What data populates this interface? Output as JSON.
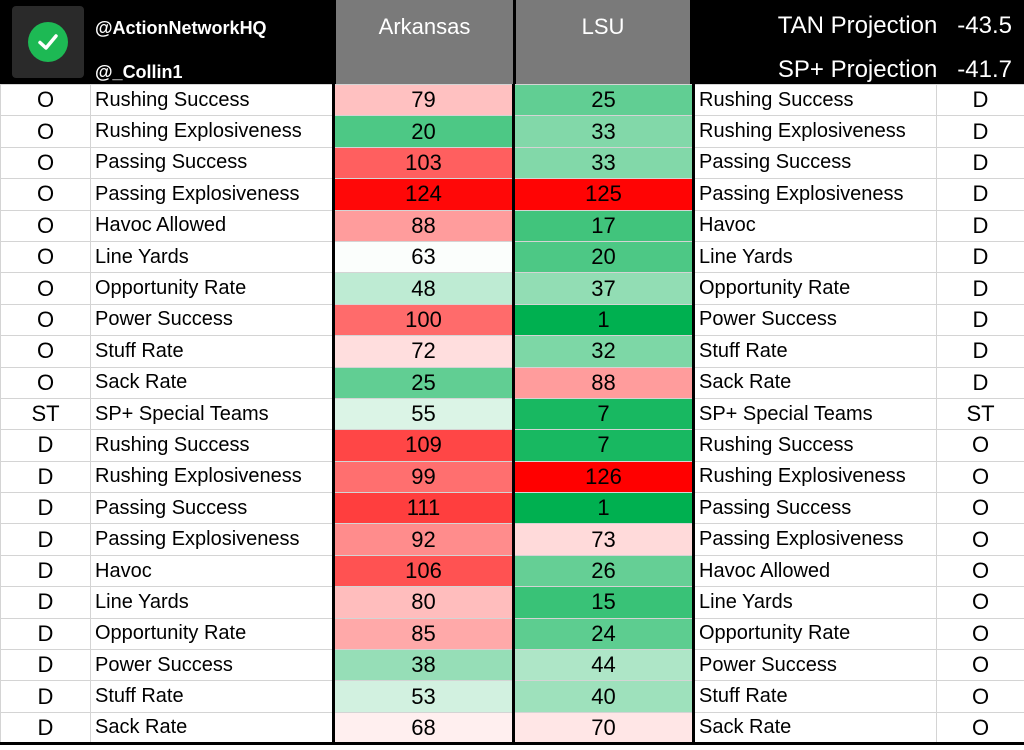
{
  "header": {
    "handle_primary": "@ActionNetworkHQ",
    "handle_secondary": "@_Collin1",
    "team_left": "Arkansas",
    "team_right": "LSU",
    "projections": [
      {
        "label": "TAN Projection",
        "value": "-43.5"
      },
      {
        "label": "SP+ Projection",
        "value": "-41.7"
      }
    ]
  },
  "colors": {
    "good": "#00b050",
    "bad": "#ff0000",
    "neutral": "#ffffff",
    "header_bg": "#000000",
    "team_header_bg": "#7a7a7a"
  },
  "rows": [
    {
      "left_side": "O",
      "left_metric": "Rushing Success",
      "ark": "79",
      "lsu": "25",
      "right_metric": "Rushing Success",
      "right_side": "D"
    },
    {
      "left_side": "O",
      "left_metric": "Rushing Explosiveness",
      "ark": "20",
      "lsu": "33",
      "right_metric": "Rushing Explosiveness",
      "right_side": "D"
    },
    {
      "left_side": "O",
      "left_metric": "Passing Success",
      "ark": "103",
      "lsu": "33",
      "right_metric": "Passing Success",
      "right_side": "D"
    },
    {
      "left_side": "O",
      "left_metric": "Passing Explosiveness",
      "ark": "124",
      "lsu": "125",
      "right_metric": "Passing Explosiveness",
      "right_side": "D"
    },
    {
      "left_side": "O",
      "left_metric": "Havoc Allowed",
      "ark": "88",
      "lsu": "17",
      "right_metric": "Havoc",
      "right_side": "D"
    },
    {
      "left_side": "O",
      "left_metric": "Line Yards",
      "ark": "63",
      "lsu": "20",
      "right_metric": "Line Yards",
      "right_side": "D"
    },
    {
      "left_side": "O",
      "left_metric": "Opportunity Rate",
      "ark": "48",
      "lsu": "37",
      "right_metric": "Opportunity Rate",
      "right_side": "D"
    },
    {
      "left_side": "O",
      "left_metric": "Power Success",
      "ark": "100",
      "lsu": "1",
      "right_metric": "Power Success",
      "right_side": "D"
    },
    {
      "left_side": "O",
      "left_metric": "Stuff Rate",
      "ark": "72",
      "lsu": "32",
      "right_metric": "Stuff Rate",
      "right_side": "D"
    },
    {
      "left_side": "O",
      "left_metric": "Sack Rate",
      "ark": "25",
      "lsu": "88",
      "right_metric": "Sack Rate",
      "right_side": "D"
    },
    {
      "left_side": "ST",
      "left_metric": "SP+ Special Teams",
      "ark": "55",
      "lsu": "7",
      "right_metric": "SP+ Special Teams",
      "right_side": "ST"
    },
    {
      "left_side": "D",
      "left_metric": "Rushing Success",
      "ark": "109",
      "lsu": "7",
      "right_metric": "Rushing Success",
      "right_side": "O"
    },
    {
      "left_side": "D",
      "left_metric": "Rushing Explosiveness",
      "ark": "99",
      "lsu": "126",
      "right_metric": "Rushing Explosiveness",
      "right_side": "O"
    },
    {
      "left_side": "D",
      "left_metric": "Passing Success",
      "ark": "111",
      "lsu": "1",
      "right_metric": "Passing Success",
      "right_side": "O"
    },
    {
      "left_side": "D",
      "left_metric": "Passing Explosiveness",
      "ark": "92",
      "lsu": "73",
      "right_metric": "Passing Explosiveness",
      "right_side": "O"
    },
    {
      "left_side": "D",
      "left_metric": "Havoc",
      "ark": "106",
      "lsu": "26",
      "right_metric": "Havoc Allowed",
      "right_side": "O"
    },
    {
      "left_side": "D",
      "left_metric": "Line Yards",
      "ark": "80",
      "lsu": "15",
      "right_metric": "Line Yards",
      "right_side": "O"
    },
    {
      "left_side": "D",
      "left_metric": "Opportunity Rate",
      "ark": "85",
      "lsu": "24",
      "right_metric": "Opportunity Rate",
      "right_side": "O"
    },
    {
      "left_side": "D",
      "left_metric": "Power Success",
      "ark": "38",
      "lsu": "44",
      "right_metric": "Power Success",
      "right_side": "O"
    },
    {
      "left_side": "D",
      "left_metric": "Stuff Rate",
      "ark": "53",
      "lsu": "40",
      "right_metric": "Stuff Rate",
      "right_side": "O"
    },
    {
      "left_side": "D",
      "left_metric": "Sack Rate",
      "ark": "68",
      "lsu": "70",
      "right_metric": "Sack Rate",
      "right_side": "O"
    }
  ]
}
